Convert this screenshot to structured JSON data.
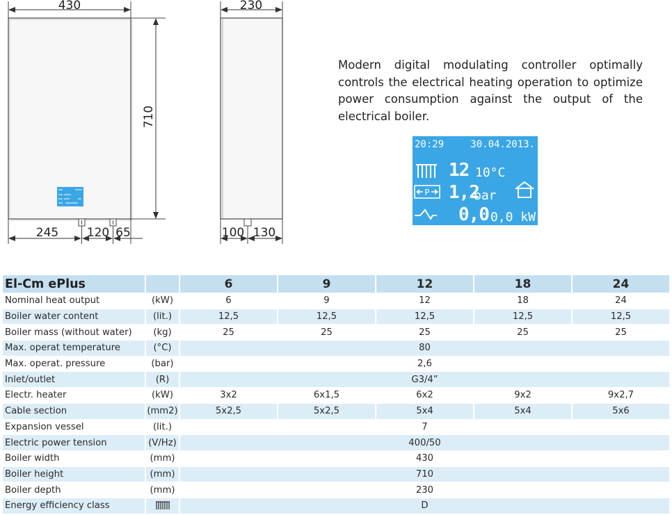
{
  "drawing": {
    "front_width": "430",
    "front_height": "710",
    "side_width": "230",
    "bottom_left": "245",
    "bottom_mid": "120",
    "bottom_right": "65",
    "side_bottom_left": "100",
    "side_bottom_right": "130"
  },
  "description": "Modern digital modulating controller optimally controls the electrical heating operation to optimize power consumption against the output of the electrical boiler.",
  "display": {
    "time": "20:29",
    "date": "30.04.2013.",
    "temp_value": "12",
    "temp_unit": "10°C",
    "pressure_value": "1,2",
    "pressure_unit": "bar",
    "power_value": "0,0",
    "power_unit": "0,0 kW",
    "pump_label": "P"
  },
  "table": {
    "title": "El-Cm ePlus",
    "models": [
      "6",
      "9",
      "12",
      "18",
      "24"
    ],
    "rows": [
      {
        "label": "Nominal heat output",
        "unit": "(kW)",
        "values": [
          "6",
          "9",
          "12",
          "18",
          "24"
        ]
      },
      {
        "label": "Boiler water content",
        "unit": "(lit.)",
        "values": [
          "12,5",
          "12,5",
          "12,5",
          "12,5",
          "12,5"
        ]
      },
      {
        "label": "Boiler mass (without water)",
        "unit": "(kg)",
        "values": [
          "25",
          "25",
          "25",
          "25",
          "25"
        ]
      },
      {
        "label": "Max. operat temperature",
        "unit": "(°C)",
        "span": "80"
      },
      {
        "label": "Max. operat. pressure",
        "unit": "(bar)",
        "span": "2,6"
      },
      {
        "label": "Inlet/outlet",
        "unit": "(R)",
        "span": "G3/4”"
      },
      {
        "label": "Electr. heater",
        "unit": "(kW)",
        "values": [
          "3x2",
          "6x1,5",
          "6x2",
          "9x2",
          "9x2,7"
        ]
      },
      {
        "label": "Cable section",
        "unit": "(mm2)",
        "values": [
          "5x2,5",
          "5x2,5",
          "5x4",
          "5x4",
          "5x6"
        ]
      },
      {
        "label": "Expansion vessel",
        "unit": "(lit.)",
        "span": "7"
      },
      {
        "label": "Electric power tension",
        "unit": "(V/Hz)",
        "span": "400/50"
      },
      {
        "label": "Boiler width",
        "unit": "(mm)",
        "span": "430"
      },
      {
        "label": "Boiler height",
        "unit": "(mm)",
        "span": "710"
      },
      {
        "label": "Boiler depth",
        "unit": "(mm)",
        "span": "230"
      },
      {
        "label": "Energy efficiency class",
        "unit_icon": "radiator-icon",
        "span": "D"
      }
    ]
  }
}
